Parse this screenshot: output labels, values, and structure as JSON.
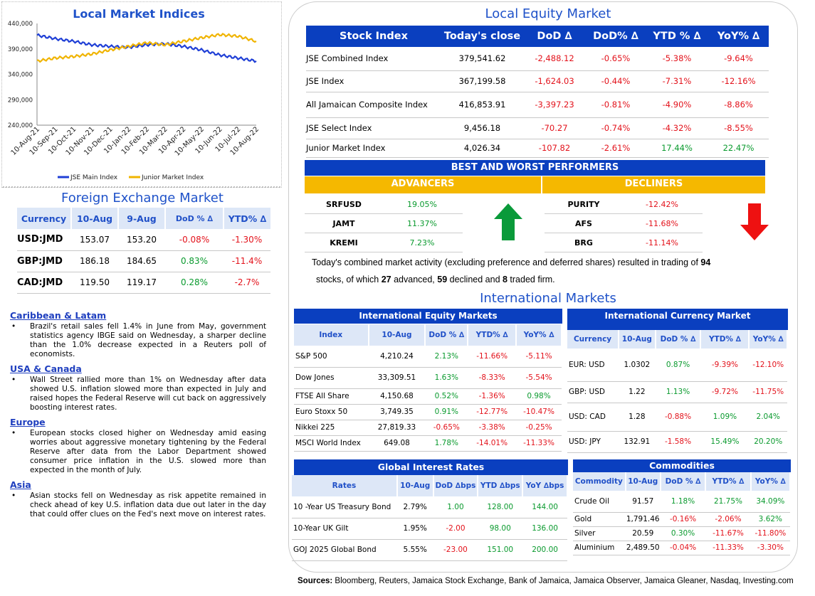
{
  "chart_data": {
    "type": "line",
    "title": "Local Market Indices",
    "categories": [
      "10-Aug-21",
      "10-Sep-21",
      "10-Oct-21",
      "10-Nov-21",
      "10-Dec-21",
      "10-Jan-22",
      "10-Feb-22",
      "10-Mar-22",
      "10-Apr-22",
      "10-May-22",
      "10-Jun-22",
      "10-Jul-22",
      "10-Aug-22"
    ],
    "yticks": [
      "440,000",
      "390,000",
      "340,000",
      "290,000",
      "240,000"
    ],
    "ylim": [
      240000,
      440000
    ],
    "series": [
      {
        "name": "JSE Main Index",
        "color": "#1f3fd6",
        "values": [
          417000,
          410000,
          405000,
          398000,
          395000,
          393000,
          398000,
          400000,
          395000,
          388000,
          378000,
          372000,
          366000
        ]
      },
      {
        "name": "Junior Market Index",
        "color": "#f0b400",
        "values": [
          366000,
          372000,
          375000,
          380000,
          388000,
          395000,
          402000,
          398000,
          405000,
          412000,
          418000,
          415000,
          405000
        ]
      }
    ]
  },
  "fx": {
    "title": "Foreign Exchange Market",
    "headers": [
      "Currency",
      "10-Aug",
      "9-Aug",
      "DoD % ∆",
      "YTD% ∆"
    ],
    "rows": [
      {
        "cur": "USD:JMD",
        "a": "153.07",
        "b": "153.20",
        "dod": "-0.08%",
        "ytd": "-1.30%"
      },
      {
        "cur": "GBP:JMD",
        "a": "186.18",
        "b": "184.65",
        "dod": "0.83%",
        "ytd": "-11.4%"
      },
      {
        "cur": "CAD:JMD",
        "a": "119.50",
        "b": "119.17",
        "dod": "0.28%",
        "ytd": "-2.7%"
      }
    ]
  },
  "news": [
    {
      "head": "Caribbean & Latam",
      "text": "Brazil's retail sales fell 1.4% in June from May, government statistics agency IBGE said on Wednesday, a sharper decline than the 1.0% decrease expected in a Reuters poll of economists."
    },
    {
      "head": "USA & Canada",
      "text": "Wall Street rallied more than 1% on Wednesday after data showed U.S. inflation slowed more than expected in July and raised hopes the Federal Reserve will cut back on aggressively boosting interest rates."
    },
    {
      "head": "Europe",
      "text": "European stocks closed higher on Wednesday amid easing worries about aggressive monetary tightening by the Federal Reserve after data from the Labor Department showed consumer price inflation in the U.S. slowed more than expected in the month of July."
    },
    {
      "head": "Asia",
      "text": "Asian stocks fell on Wednesday as risk appetite remained in check ahead of key U.S. inflation data due out later in the day that could offer clues on the Fed's next move on interest rates."
    }
  ],
  "equity": {
    "title": "Local Equity Market",
    "headers": [
      "Stock Index",
      "Today's close",
      "DoD  ∆",
      "DoD% ∆",
      "YTD % ∆",
      "YoY% ∆"
    ],
    "rows": [
      {
        "n": "JSE Combined Index",
        "c": "379,541.62",
        "d": "-2,488.12",
        "dp": "-0.65%",
        "y": "-5.38%",
        "yy": "-9.64%"
      },
      {
        "n": "JSE Index",
        "c": "367,199.58",
        "d": "-1,624.03",
        "dp": "-0.44%",
        "y": "-7.31%",
        "yy": "-12.16%"
      },
      {
        "n": "All Jamaican Composite Index",
        "c": "416,853.91",
        "d": "-3,397.23",
        "dp": "-0.81%",
        "y": "-4.90%",
        "yy": "-8.86%"
      },
      {
        "n": "JSE Select Index",
        "c": "9,456.18",
        "d": "-70.27",
        "dp": "-0.74%",
        "y": "-4.32%",
        "yy": "-8.55%"
      },
      {
        "n": "Junior Market Index",
        "c": "4,026.34",
        "d": "-107.82",
        "dp": "-2.61%",
        "y": "17.44%",
        "yy": "22.47%"
      }
    ]
  },
  "performers": {
    "title": "BEST AND WORST PERFORMERS",
    "adv_label": "ADVANCERS",
    "dec_label": "DECLINERS",
    "advancers": [
      {
        "s": "SRFUSD",
        "v": "19.05%"
      },
      {
        "s": "JAMT",
        "v": "11.37%"
      },
      {
        "s": "KREMI",
        "v": "7.23%"
      }
    ],
    "decliners": [
      {
        "s": "PURITY",
        "v": "-12.42%"
      },
      {
        "s": "AFS",
        "v": "-11.68%"
      },
      {
        "s": "BRG",
        "v": "-11.14%"
      }
    ]
  },
  "summary": {
    "p1": "Today's combined market activity (excluding preference and deferred shares) resulted in trading of ",
    "n1": "94",
    "p2": "stocks, of which ",
    "n2": "27",
    "p3": " advanced, ",
    "n3": "59",
    "p4": " declined and ",
    "n4": "8",
    "p5": " traded firm."
  },
  "intl": {
    "title": "International Markets",
    "eq_title": "International Equity Markets",
    "eq_headers": [
      "Index",
      "10-Aug",
      "DoD % ∆",
      "YTD% ∆",
      "YoY% ∆"
    ],
    "eq_rows": [
      {
        "n": "S&P 500",
        "v": "4,210.24",
        "d": "2.13%",
        "y": "-11.66%",
        "yy": "-5.11%"
      },
      {
        "n": "Dow Jones",
        "v": "33,309.51",
        "d": "1.63%",
        "y": "-8.33%",
        "yy": "-5.54%"
      },
      {
        "n": "FTSE All Share",
        "v": "4,150.68",
        "d": "0.52%",
        "y": "-1.36%",
        "yy": "0.98%"
      },
      {
        "n": "Euro Stoxx 50",
        "v": "3,749.35",
        "d": "0.91%",
        "y": "-12.77%",
        "yy": "-10.47%"
      },
      {
        "n": "Nikkei 225",
        "v": "27,819.33",
        "d": "-0.65%",
        "y": "-3.38%",
        "yy": "-0.25%"
      },
      {
        "n": "MSCI World Index",
        "v": "649.08",
        "d": "1.78%",
        "y": "-14.01%",
        "yy": "-11.33%"
      }
    ],
    "cur_title": "International Currency Market",
    "cur_headers": [
      "Currency",
      "10-Aug",
      "DoD % ∆",
      "YTD% ∆",
      "YoY% ∆"
    ],
    "cur_rows": [
      {
        "n": "EUR: USD",
        "v": "1.0302",
        "d": "0.87%",
        "y": "-9.39%",
        "yy": "-12.10%"
      },
      {
        "n": "GBP: USD",
        "v": "1.22",
        "d": "1.13%",
        "y": "-9.72%",
        "yy": "-11.75%"
      },
      {
        "n": "USD: CAD",
        "v": "1.28",
        "d": "-0.88%",
        "y": "1.09%",
        "yy": "2.04%"
      },
      {
        "n": "USD: JPY",
        "v": "132.91",
        "d": "-1.58%",
        "y": "15.49%",
        "yy": "20.20%"
      }
    ],
    "rates_title": "Global Interest Rates",
    "rates_headers": [
      "Rates",
      "10-Aug",
      "DoD ∆bps",
      "YTD ∆bps",
      "YoY ∆bps"
    ],
    "rates_rows": [
      {
        "n": "10 -Year US Treasury Bond",
        "v": "2.79%",
        "d": "1.00",
        "y": "128.00",
        "yy": "144.00"
      },
      {
        "n": "10-Year UK Gilt",
        "v": "1.95%",
        "d": "-2.00",
        "y": "98.00",
        "yy": "136.00"
      },
      {
        "n": "GOJ 2025 Global Bond",
        "v": "5.55%",
        "d": "-23.00",
        "y": "151.00",
        "yy": "200.00"
      }
    ],
    "com_title": "Commodities",
    "com_headers": [
      "Commodity",
      "10-Aug",
      "DoD % ∆",
      "YTD% ∆",
      "YoY% ∆"
    ],
    "com_rows": [
      {
        "n": "Crude Oil",
        "v": "91.57",
        "d": "1.18%",
        "y": "21.75%",
        "yy": "34.09%"
      },
      {
        "n": "Gold",
        "v": "1,791.46",
        "d": "-0.16%",
        "y": "-2.06%",
        "yy": "3.62%"
      },
      {
        "n": "Silver",
        "v": "20.59",
        "d": "0.30%",
        "y": "-11.67%",
        "yy": "-11.80%"
      },
      {
        "n": "Aluminium",
        "v": "2,489.50",
        "d": "-0.04%",
        "y": "-11.33%",
        "yy": "-3.30%"
      }
    ]
  },
  "sources": {
    "label": "Sources:",
    "text": "Bloomberg, Reuters, Jamaica Stock Exchange, Bank of Jamaica, Jamaica Observer, Jamaica Gleaner, Nasdaq, Investing.com"
  }
}
